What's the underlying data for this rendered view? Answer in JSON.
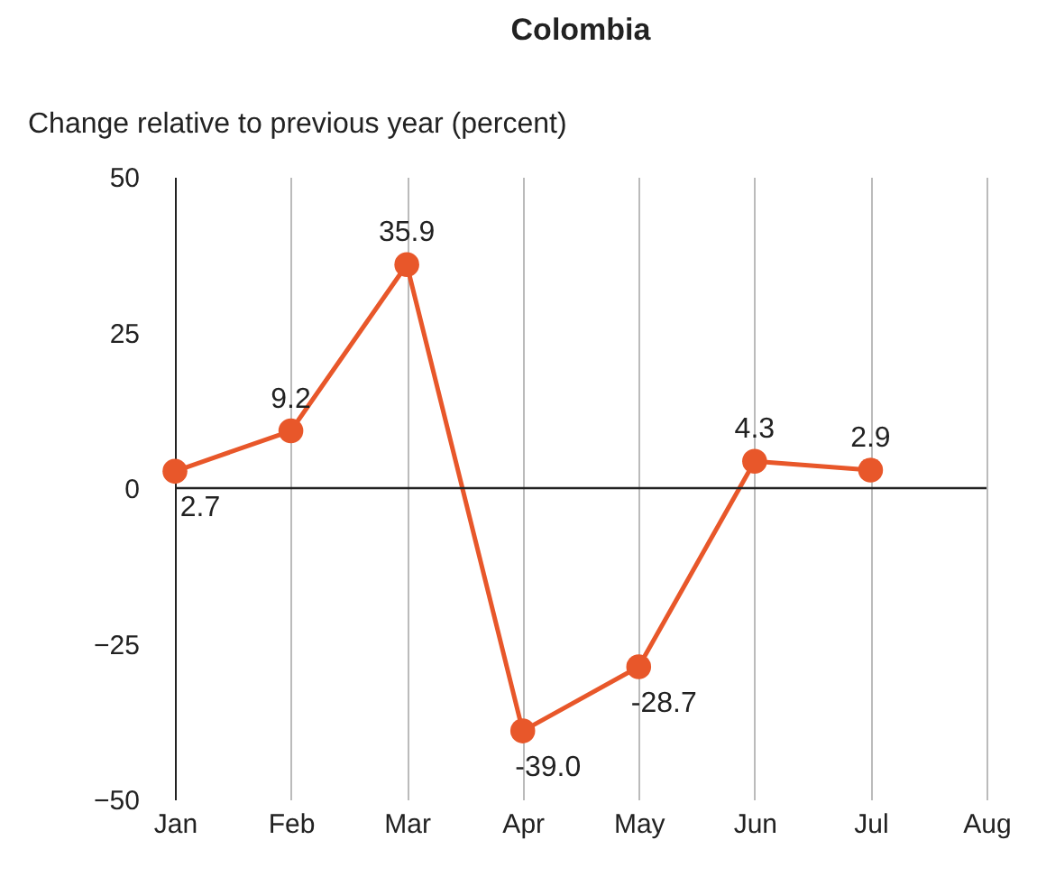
{
  "chart_data": {
    "type": "line",
    "title": "Colombia",
    "ylabel": "Change relative to previous year (percent)",
    "categories": [
      "Jan",
      "Feb",
      "Mar",
      "Apr",
      "May",
      "Jun",
      "Jul",
      "Aug"
    ],
    "series": [
      {
        "color": "#e8572a",
        "values": [
          2.7,
          9.2,
          35.9,
          -39.0,
          -28.7,
          4.3,
          2.9,
          null
        ],
        "value_labels": [
          "2.7",
          "9.2",
          "35.9",
          "-39.0",
          "-28.7",
          "4.3",
          "2.9",
          null
        ]
      }
    ],
    "ylim": [
      -50,
      50
    ],
    "yticks": [
      -50,
      -25,
      0,
      25,
      50
    ],
    "grid": "x",
    "marker": "circle",
    "line_style": "solid",
    "ref_lines": [
      {
        "axis": "y",
        "value": 0
      }
    ]
  }
}
